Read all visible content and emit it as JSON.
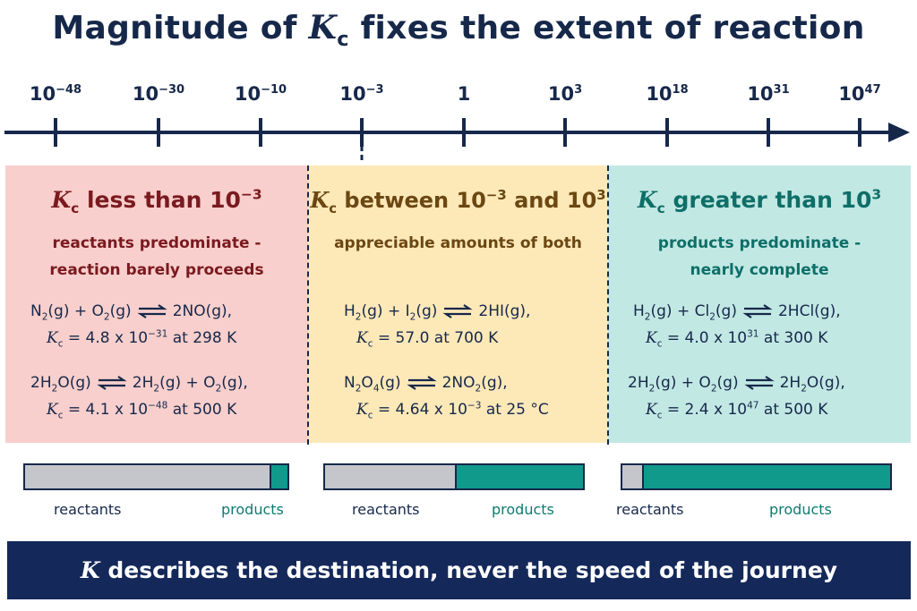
{
  "title": {
    "pre": "Magnitude of ",
    "K": "K",
    "sub": "c",
    "post": " fixes the extent of reaction"
  },
  "axis": {
    "ticks": [
      {
        "base": "10",
        "exp": "−48"
      },
      {
        "base": "10",
        "exp": "−30"
      },
      {
        "base": "10",
        "exp": "−10"
      },
      {
        "base": "10",
        "exp": "−3"
      },
      {
        "base": "1",
        "exp": ""
      },
      {
        "base": "10",
        "exp": "3"
      },
      {
        "base": "10",
        "exp": "18"
      },
      {
        "base": "10",
        "exp": "31"
      },
      {
        "base": "10",
        "exp": "47"
      }
    ],
    "tick_values_log10": [
      -48,
      -30,
      -10,
      -3,
      0,
      3,
      18,
      31,
      47
    ],
    "arrow_color": "#16284a"
  },
  "panels": {
    "low": {
      "head": {
        "K": "K",
        "sub": "c",
        "mid": " less than 10",
        "exp": "−3"
      },
      "sub1": "reactants predominate -",
      "sub2": "reaction barely proceeds",
      "eq1": {
        "l1": "N",
        "l1s": "2",
        "l2": "(g)  +  O",
        "l2s": "2",
        "l3": "(g)",
        "r1": "2NO(g),",
        "kval": " = 4.8 x 10",
        "kexp": "−31",
        "kpost": " at 298 K"
      },
      "eq2": {
        "l1": "2H",
        "l1s": "2",
        "l2": "O(g)",
        "r1": "2H",
        "r1s": "2",
        "r2": "(g)  +  O",
        "r2s": "2",
        "r3": "(g),",
        "kval": " = 4.1 x 10",
        "kexp": "−48",
        "kpost": " at 500 K"
      },
      "color": "#f8cfcc"
    },
    "mid": {
      "head": {
        "K": "K",
        "sub": "c",
        "mid": " between 10",
        "exp": "−3",
        "and": " and 10",
        "exp2": "3"
      },
      "sub1": "appreciable amounts of both",
      "eq1": {
        "l1": "H",
        "l1s": "2",
        "l2": "(g)  +  I",
        "l2s": "2",
        "l3": "(g)",
        "r1": "2HI(g),",
        "kval": " = 57.0 at 700 K"
      },
      "eq2": {
        "l1": "N",
        "l1s": "2",
        "l2": "O",
        "l2s": "4",
        "l3": "(g)",
        "r1": "2NO",
        "r1s": "2",
        "r2": "(g),",
        "kval": " = 4.64 x 10",
        "kexp": "−3",
        "kpost": " at 25 °C"
      },
      "color": "#fde8b8"
    },
    "high": {
      "head": {
        "K": "K",
        "sub": "c",
        "mid": " greater than 10",
        "exp": "3"
      },
      "sub1": "products predominate -",
      "sub2": "nearly complete",
      "eq1": {
        "l1": "H",
        "l1s": "2",
        "l2": "(g)  +  Cl",
        "l2s": "2",
        "l3": "(g)",
        "r1": "2HCl(g),",
        "kval": " = 4.0 x 10",
        "kexp": "31",
        "kpost": "  at 300 K"
      },
      "eq2": {
        "l1": "2H",
        "l1s": "2",
        "l2": "(g)  +  O",
        "l2s": "2",
        "l3": "(g)",
        "r1": "2H",
        "r1s": "2",
        "r2": "O(g),",
        "kval": " = 2.4 x 10",
        "kexp": "47",
        "kpost": "  at 500 K"
      },
      "color": "#c2e8e4"
    }
  },
  "bars": {
    "reactants_label": "reactants",
    "products_label": "products",
    "product_fraction": [
      0.06,
      0.49,
      0.92
    ],
    "reactant_color": "#c4c6cb",
    "product_color": "#0f9a8c"
  },
  "footer": {
    "K": "K",
    "text": " describes the destination, never the speed of the journey"
  }
}
